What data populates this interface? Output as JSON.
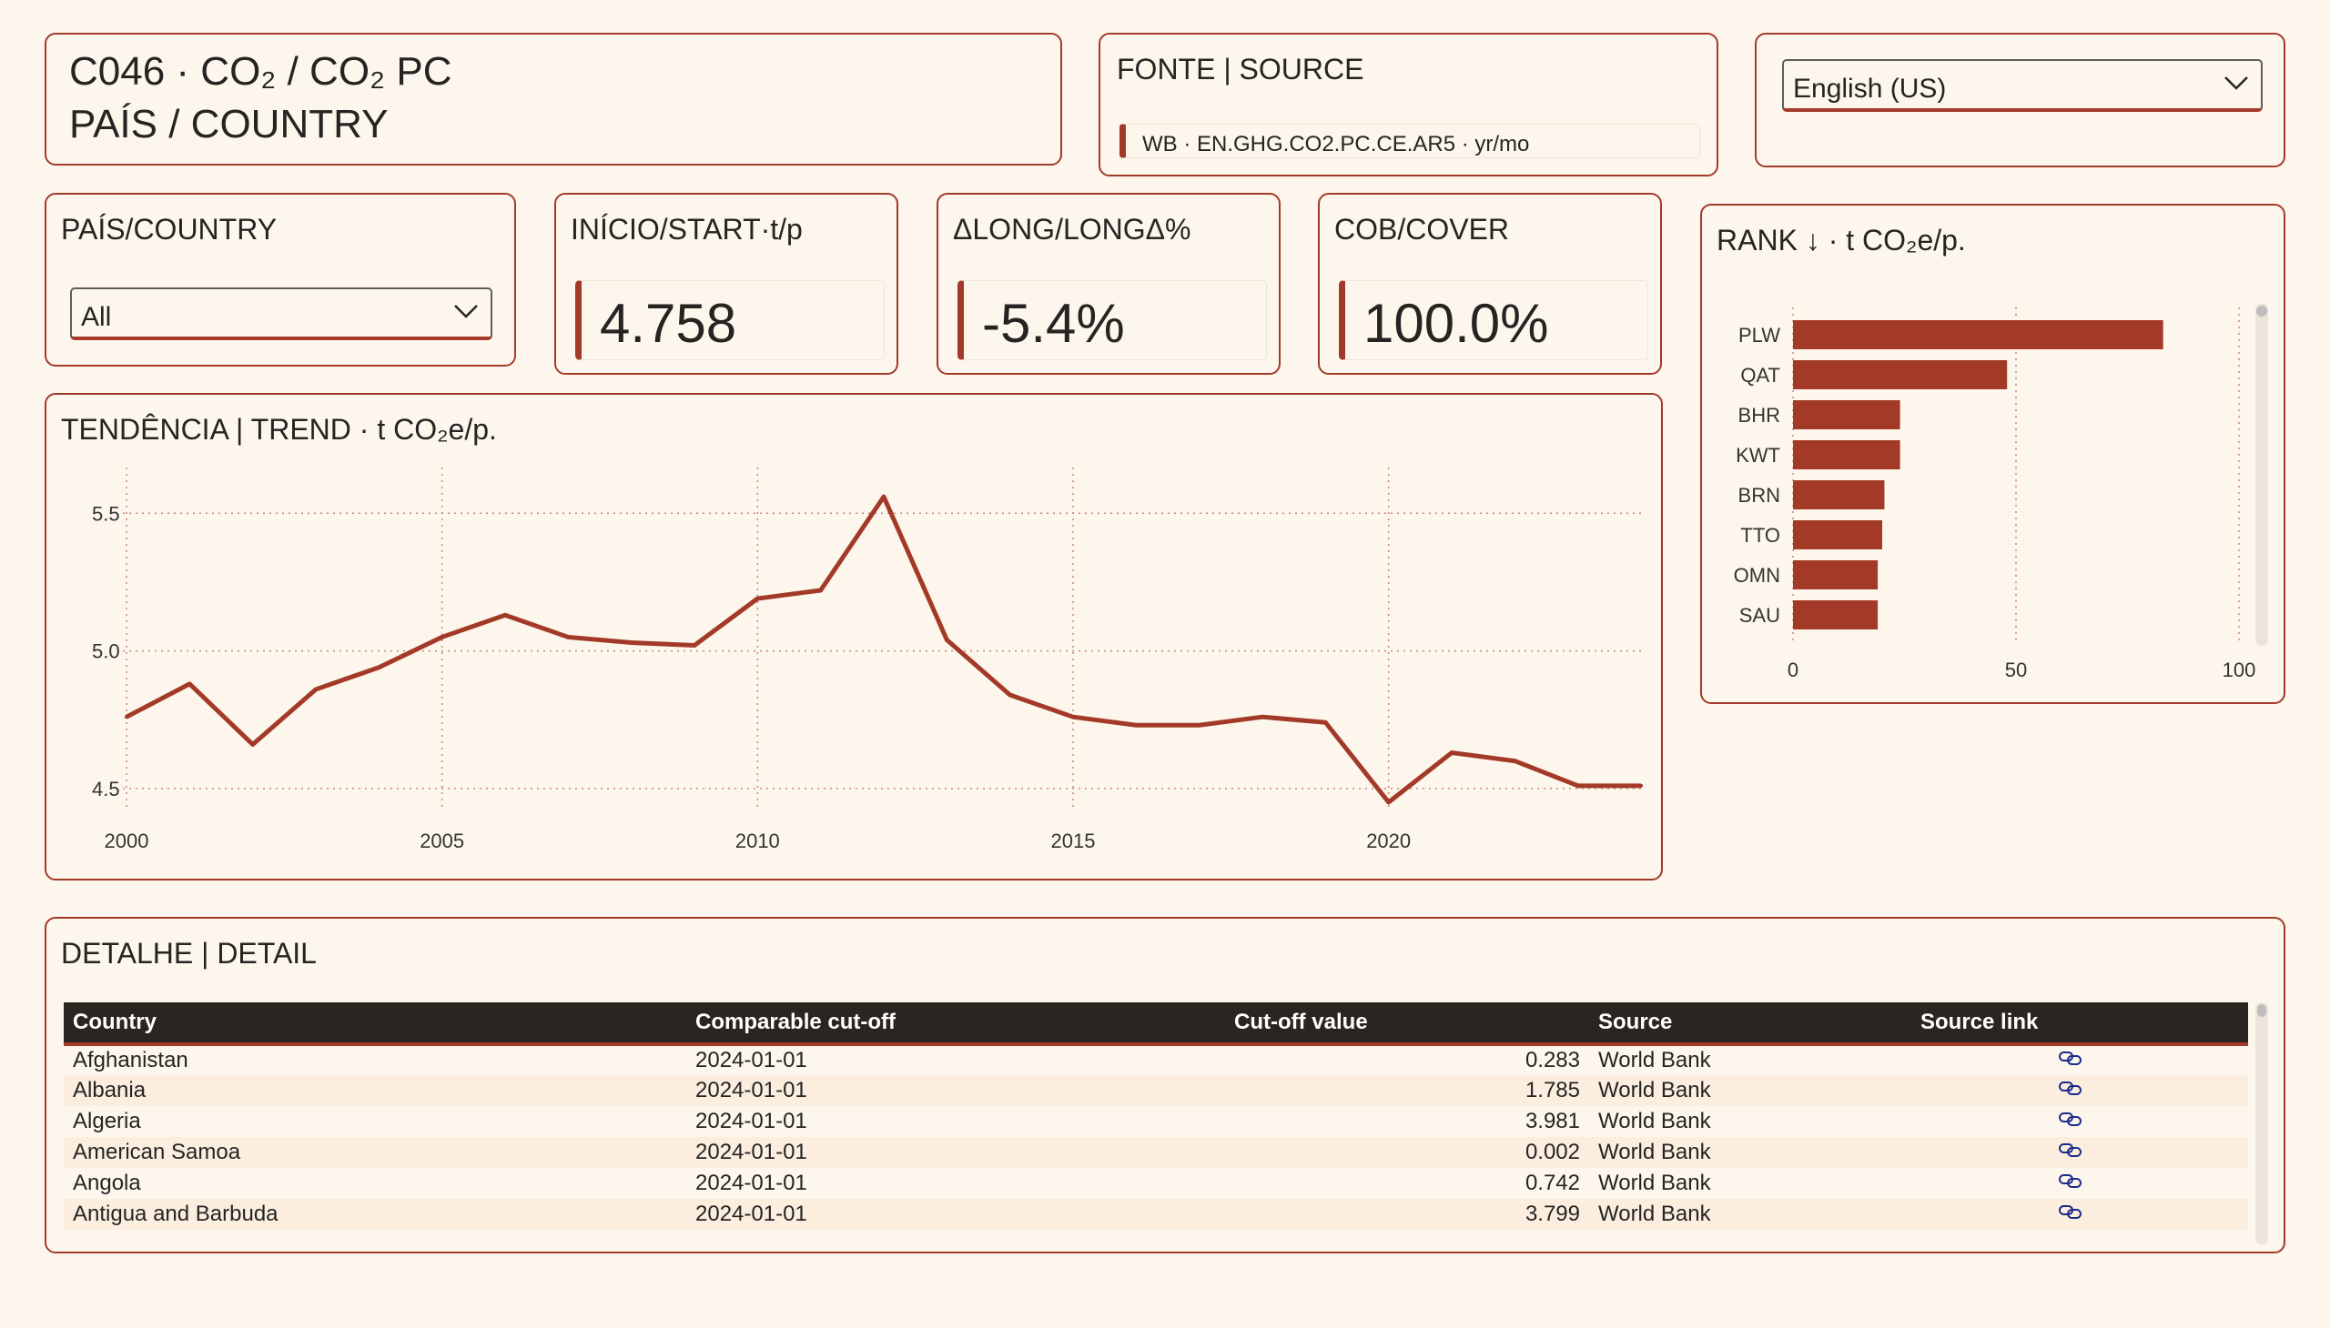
{
  "header": {
    "title_line1": "C046 · CO₂ / CO₂ PC",
    "title_line2": "PAÍS / COUNTRY"
  },
  "source": {
    "title": "FONTE | SOURCE",
    "text": "WB · EN.GHG.CO2.PC.CE.AR5 · yr/mo"
  },
  "language": {
    "selected": "English (US)"
  },
  "country_filter": {
    "title": "PAÍS/COUNTRY",
    "selected": "All"
  },
  "kpis": {
    "start": {
      "title": "INÍCIO/START·t/p",
      "value": "4.758"
    },
    "delta": {
      "title": "ΔLONG/LONGΔ%",
      "value": "-5.4%"
    },
    "cover": {
      "title": "COB/COVER",
      "value": "100.0%"
    }
  },
  "accent_color": "#a33a28",
  "chart_data": [
    {
      "type": "line",
      "title": "TENDÊNCIA | TREND · t CO₂e/p.",
      "x": [
        2000,
        2001,
        2002,
        2003,
        2004,
        2005,
        2006,
        2007,
        2008,
        2009,
        2010,
        2011,
        2012,
        2013,
        2014,
        2015,
        2016,
        2017,
        2018,
        2019,
        2020,
        2021,
        2022,
        2023,
        2024
      ],
      "values": [
        4.76,
        4.88,
        4.66,
        4.86,
        4.94,
        5.05,
        5.13,
        5.05,
        5.03,
        5.02,
        5.19,
        5.22,
        5.56,
        5.04,
        4.84,
        4.76,
        4.73,
        4.73,
        4.76,
        4.74,
        4.45,
        4.63,
        4.6,
        4.51,
        4.51
      ],
      "xticks": [
        "2000",
        "2005",
        "2010",
        "2015",
        "2020"
      ],
      "yticks": [
        "4.5",
        "5.0",
        "5.5"
      ],
      "ylim": [
        4.45,
        5.6
      ],
      "xlim": [
        2000,
        2024
      ],
      "grid": true,
      "color": "#a33a28"
    },
    {
      "type": "bar",
      "orientation": "horizontal",
      "title": "RANK ↓ · t CO₂e/p.",
      "categories": [
        "PLW",
        "QAT",
        "BHR",
        "KWT",
        "BRN",
        "TTO",
        "OMN",
        "SAU"
      ],
      "values": [
        83,
        48,
        24,
        24,
        20.5,
        20,
        19,
        19
      ],
      "xticks": [
        "0",
        "50",
        "100"
      ],
      "xlim": [
        0,
        100
      ],
      "grid": true,
      "color": "#a33a28"
    }
  ],
  "detail": {
    "title": "DETALHE | DETAIL",
    "columns": [
      "Country",
      "Comparable cut-off",
      "Cut-off value",
      "Source",
      "Source link"
    ],
    "rows": [
      {
        "country": "Afghanistan",
        "cutoff": "2024-01-01",
        "value": "0.283",
        "source": "World Bank",
        "link_icon": "link-icon"
      },
      {
        "country": "Albania",
        "cutoff": "2024-01-01",
        "value": "1.785",
        "source": "World Bank",
        "link_icon": "link-icon"
      },
      {
        "country": "Algeria",
        "cutoff": "2024-01-01",
        "value": "3.981",
        "source": "World Bank",
        "link_icon": "link-icon"
      },
      {
        "country": "American Samoa",
        "cutoff": "2024-01-01",
        "value": "0.002",
        "source": "World Bank",
        "link_icon": "link-icon"
      },
      {
        "country": "Angola",
        "cutoff": "2024-01-01",
        "value": "0.742",
        "source": "World Bank",
        "link_icon": "link-icon"
      },
      {
        "country": "Antigua and Barbuda",
        "cutoff": "2024-01-01",
        "value": "3.799",
        "source": "World Bank",
        "link_icon": "link-icon"
      }
    ]
  }
}
